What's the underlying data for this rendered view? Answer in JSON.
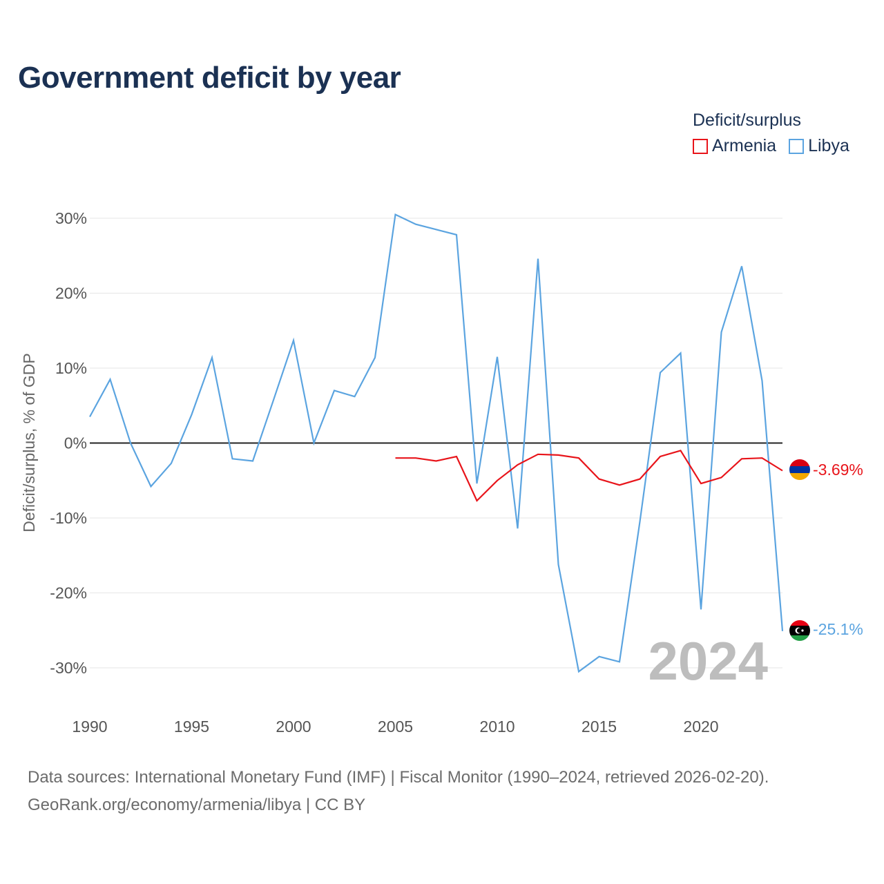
{
  "title": "Government deficit by year",
  "legend": {
    "title": "Deficit/surplus",
    "items": [
      {
        "label": "Armenia",
        "color": "#e8141a"
      },
      {
        "label": "Libya",
        "color": "#5ba4e0"
      }
    ]
  },
  "footer": {
    "line1": "Data sources: International Monetary Fund (IMF) | Fiscal Monitor (1990–2024, retrieved 2026-02-20).",
    "line2": "GeoRank.org/economy/armenia/libya | CC BY"
  },
  "chart_data": {
    "type": "line",
    "title": "Government deficit by year",
    "ylabel": "Deficit/surplus, % of GDP",
    "xlabel": "",
    "xlim": [
      1990,
      2024
    ],
    "ylim": [
      -30,
      30
    ],
    "x_ticks": [
      1990,
      1995,
      2000,
      2005,
      2010,
      2015,
      2020
    ],
    "y_ticks": [
      30,
      20,
      10,
      0,
      -10,
      -20,
      -30
    ],
    "y_tick_labels": [
      "30%",
      "20%",
      "10%",
      "0%",
      "-10%",
      "-20%",
      "-30%"
    ],
    "year_watermark": "2024",
    "series": [
      {
        "name": "Libya",
        "color": "#5ba4e0",
        "end_label": "-25.1%",
        "points": [
          [
            1990,
            3.5
          ],
          [
            1991,
            8.5
          ],
          [
            1992,
            0.0
          ],
          [
            1993,
            -5.8
          ],
          [
            1994,
            -2.7
          ],
          [
            1995,
            3.8
          ],
          [
            1996,
            11.4
          ],
          [
            1997,
            -2.1
          ],
          [
            1998,
            -2.4
          ],
          [
            1999,
            5.6
          ],
          [
            2000,
            13.7
          ],
          [
            2001,
            0.0
          ],
          [
            2002,
            7.0
          ],
          [
            2003,
            6.2
          ],
          [
            2004,
            11.4
          ],
          [
            2005,
            30.5
          ],
          [
            2006,
            29.2
          ],
          [
            2007,
            28.5
          ],
          [
            2008,
            27.8
          ],
          [
            2009,
            -5.4
          ],
          [
            2010,
            11.5
          ],
          [
            2011,
            -11.4
          ],
          [
            2012,
            24.6
          ],
          [
            2013,
            -16.2
          ],
          [
            2014,
            -30.5
          ],
          [
            2015,
            -28.5
          ],
          [
            2016,
            -29.2
          ],
          [
            2017,
            -10.5
          ],
          [
            2018,
            9.4
          ],
          [
            2019,
            12.0
          ],
          [
            2020,
            -22.2
          ],
          [
            2021,
            14.8
          ],
          [
            2022,
            23.6
          ],
          [
            2023,
            8.3
          ],
          [
            2024,
            -25.1
          ]
        ]
      },
      {
        "name": "Armenia",
        "color": "#e8141a",
        "end_label": "-3.69%",
        "points": [
          [
            2005,
            -2.0
          ],
          [
            2006,
            -2.0
          ],
          [
            2007,
            -2.4
          ],
          [
            2008,
            -1.8
          ],
          [
            2009,
            -7.7
          ],
          [
            2010,
            -5.0
          ],
          [
            2011,
            -2.9
          ],
          [
            2012,
            -1.5
          ],
          [
            2013,
            -1.6
          ],
          [
            2014,
            -2.0
          ],
          [
            2015,
            -4.8
          ],
          [
            2016,
            -5.6
          ],
          [
            2017,
            -4.8
          ],
          [
            2018,
            -1.8
          ],
          [
            2019,
            -1.0
          ],
          [
            2020,
            -5.4
          ],
          [
            2021,
            -4.6
          ],
          [
            2022,
            -2.1
          ],
          [
            2023,
            -2.0
          ],
          [
            2024,
            -3.69
          ]
        ]
      }
    ]
  }
}
